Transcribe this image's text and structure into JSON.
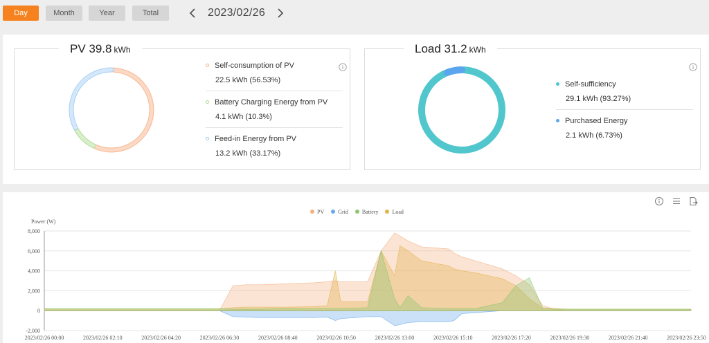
{
  "toolbar": {
    "buttons": [
      {
        "label": "Day",
        "active": true
      },
      {
        "label": "Month",
        "active": false
      },
      {
        "label": "Year",
        "active": false
      },
      {
        "label": "Total",
        "active": false
      }
    ],
    "date": "2023/02/26"
  },
  "pv_card": {
    "title": "PV 39.8",
    "unit": "kWh",
    "items": [
      {
        "label": "Self-consumption of PV",
        "value": "22.5 kWh (56.53%)",
        "color": "#f4b18a"
      },
      {
        "label": "Battery Charging Energy from PV",
        "value": "4.1 kWh (10.3%)",
        "color": "#a9d88f"
      },
      {
        "label": "Feed-in Energy from PV",
        "value": "13.2 kWh (33.17%)",
        "color": "#9cc9f0"
      }
    ],
    "donut": [
      {
        "name": "Self-consumption of PV",
        "percent": 56.53,
        "color": "#fbd9c4",
        "stroke": "#f6b994"
      },
      {
        "name": "Battery Charging Energy from PV",
        "percent": 10.3,
        "color": "#d9eecb",
        "stroke": "#b4dc9c"
      },
      {
        "name": "Feed-in Energy from PV",
        "percent": 33.17,
        "color": "#d4e8fb",
        "stroke": "#a8cff3"
      }
    ]
  },
  "load_card": {
    "title": "Load 31.2",
    "unit": "kWh",
    "items": [
      {
        "label": "Self-sufficiency",
        "value": "29.1 kWh (93.27%)",
        "color": "#4ec5cc"
      },
      {
        "label": "Purchased Energy",
        "value": "2.1 kWh (6.73%)",
        "color": "#5aa6ee"
      }
    ],
    "donut": [
      {
        "name": "Self-sufficiency",
        "percent": 93.27,
        "color": "#52c6cd"
      },
      {
        "name": "Purchased Energy",
        "percent": 6.73,
        "color": "#5aa6ee"
      }
    ]
  },
  "icons": {
    "info": "info-icon",
    "list": "list-icon",
    "export": "export-icon"
  },
  "chart_data": {
    "type": "area",
    "ylabel": "Power (W)",
    "ylim": [
      -2000,
      8000
    ],
    "yticks": [
      "8,000",
      "6,000",
      "4,000",
      "2,000",
      "0",
      "-2,000"
    ],
    "xticks": [
      "2023/02/26 00:00",
      "2023/02/26 02:10",
      "2023/02/26 04:20",
      "2023/02/26 06:30",
      "2023/02/26 08:40",
      "2023/02/26 10:50",
      "2023/02/26 13:00",
      "2023/02/26 15:10",
      "2023/02/26 17:20",
      "2023/02/26 19:30",
      "2023/02/26 21:40",
      "2023/02/26 23:50"
    ],
    "legend_position": "top-center",
    "grid": true,
    "x_hours": [
      0,
      6.5,
      7.0,
      7.5,
      8.0,
      9.0,
      10.0,
      10.5,
      10.8,
      11.0,
      12.0,
      12.5,
      13.0,
      13.2,
      13.5,
      14.0,
      15.0,
      15.2,
      15.5,
      16.0,
      17.0,
      17.5,
      18.0,
      18.5,
      19.0,
      19.5,
      24.0
    ],
    "series": [
      {
        "name": "PV",
        "color": "#f4b183",
        "values": [
          0,
          0,
          2500,
          2600,
          2600,
          2700,
          2800,
          2900,
          3000,
          2900,
          2900,
          6000,
          7800,
          7500,
          7000,
          6400,
          6200,
          5800,
          5400,
          5000,
          4200,
          3500,
          2600,
          500,
          100,
          0,
          0
        ]
      },
      {
        "name": "Grid",
        "color": "#6aa8ec",
        "values": [
          0,
          0,
          -600,
          -650,
          -700,
          -700,
          -700,
          -650,
          -1000,
          -800,
          -600,
          -600,
          -1500,
          -1400,
          -1200,
          -1100,
          -1100,
          -1000,
          -300,
          -200,
          0,
          0,
          0,
          0,
          0,
          0,
          0
        ]
      },
      {
        "name": "Battery",
        "color": "#8cc66f",
        "values": [
          200,
          200,
          150,
          150,
          150,
          200,
          200,
          200,
          200,
          200,
          300,
          6000,
          1200,
          300,
          1500,
          300,
          200,
          200,
          200,
          200,
          800,
          2500,
          3300,
          200,
          150,
          150,
          150
        ]
      },
      {
        "name": "Load",
        "color": "#e2b34a",
        "values": [
          150,
          150,
          300,
          350,
          350,
          350,
          400,
          500,
          4000,
          900,
          900,
          6000,
          3500,
          6500,
          6000,
          5000,
          4500,
          4200,
          4000,
          3800,
          3200,
          2500,
          1200,
          250,
          200,
          150,
          150
        ]
      }
    ]
  }
}
